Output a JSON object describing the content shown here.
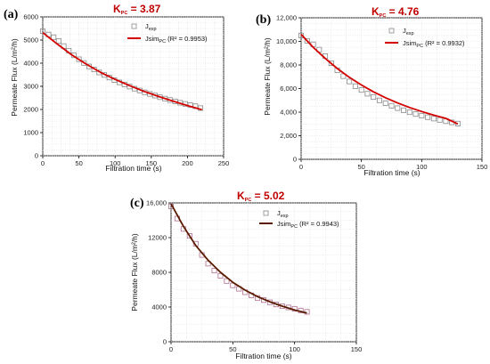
{
  "chart_data": [
    {
      "panel": "(a)",
      "title": "KPC = 3.87",
      "title_main": "K",
      "title_sub": "PC",
      "title_rest": " = 3.87",
      "type": "scatter",
      "xlabel": "Filtration time (s)",
      "ylabel": "Permeate Flux (L/m²/h)",
      "xlim": [
        0,
        250
      ],
      "ylim": [
        0,
        6000
      ],
      "xticks": [
        "0",
        "50",
        "100",
        "150",
        "200",
        "250"
      ],
      "yticks": [
        "0",
        "1000",
        "2000",
        "3000",
        "4000",
        "5000",
        "6000"
      ],
      "legend": {
        "exp": "J",
        "exp_sub": "exp",
        "sim": "Jsim",
        "sim_sub": "PC",
        "sim_rest": " (R² = 0.9953)"
      },
      "legend_position": "top-right",
      "line_color": "#d40000",
      "grid": true,
      "series": [
        {
          "name": "Jexp",
          "kind": "points",
          "x": [
            0,
            8,
            15,
            22,
            29,
            36,
            43,
            50,
            57,
            64,
            71,
            78,
            85,
            92,
            99,
            106,
            113,
            120,
            127,
            134,
            141,
            148,
            155,
            162,
            169,
            176,
            183,
            190,
            197,
            204,
            211,
            218
          ],
          "y": [
            5380,
            5240,
            5120,
            4960,
            4740,
            4540,
            4340,
            4170,
            4010,
            3860,
            3730,
            3600,
            3490,
            3380,
            3270,
            3170,
            3080,
            2990,
            2900,
            2820,
            2740,
            2670,
            2600,
            2530,
            2470,
            2410,
            2350,
            2290,
            2240,
            2190,
            2140,
            2060
          ]
        },
        {
          "name": "JsimPC (R² = 0.9953)",
          "kind": "line",
          "x": [
            0,
            20,
            40,
            60,
            80,
            100,
            120,
            140,
            160,
            180,
            200,
            220
          ],
          "y": [
            5320,
            4830,
            4360,
            3960,
            3600,
            3300,
            3030,
            2780,
            2560,
            2360,
            2170,
            1990
          ]
        }
      ]
    },
    {
      "panel": "(b)",
      "title": "KPC = 4.76",
      "title_main": "K",
      "title_sub": "PC",
      "title_rest": " = 4.76",
      "type": "scatter",
      "xlabel": "Filtration time (s)",
      "ylabel": "Permeate Flux (L/m²/h)",
      "xlim": [
        0,
        150
      ],
      "ylim": [
        0,
        12000
      ],
      "xticks": [
        "0",
        "50",
        "100",
        "150"
      ],
      "yticks": [
        "0",
        "2,000",
        "4,000",
        "6,000",
        "8,000",
        "10,000",
        "12,000"
      ],
      "legend": {
        "exp": "J",
        "exp_sub": "exp",
        "sim": "Jsim",
        "sim_sub": "PC",
        "sim_rest": " (R² = 0.9932)"
      },
      "legend_position": "top-right",
      "line_color": "#d40000",
      "grid": true,
      "series": [
        {
          "name": "Jexp",
          "kind": "points",
          "x": [
            0,
            5,
            10,
            15,
            20,
            25,
            30,
            35,
            40,
            45,
            50,
            55,
            60,
            65,
            70,
            75,
            80,
            85,
            90,
            95,
            100,
            105,
            110,
            115,
            120,
            125,
            130
          ],
          "y": [
            10500,
            10050,
            9750,
            9300,
            8750,
            8150,
            7550,
            7050,
            6600,
            6200,
            5880,
            5560,
            5280,
            5000,
            4760,
            4540,
            4340,
            4160,
            3990,
            3840,
            3700,
            3570,
            3450,
            3340,
            3230,
            3130,
            3030
          ]
        },
        {
          "name": "JsimPC (R² = 0.9932)",
          "kind": "line",
          "x": [
            0,
            10,
            20,
            30,
            40,
            50,
            60,
            70,
            80,
            90,
            100,
            110,
            120,
            130
          ],
          "y": [
            10600,
            9500,
            8550,
            7700,
            6950,
            6300,
            5720,
            5220,
            4780,
            4390,
            4050,
            3740,
            3470,
            3000
          ]
        }
      ]
    },
    {
      "panel": "(c)",
      "title": "KPC = 5.02",
      "title_main": "K",
      "title_sub": "PC",
      "title_rest": " = 5.02",
      "type": "scatter",
      "xlabel": "Filtration time (s)",
      "ylabel": "Permeate Flux (L/m²/h)",
      "xlim": [
        0,
        150
      ],
      "ylim": [
        0,
        16000
      ],
      "xticks": [
        "0",
        "50",
        "100",
        "150"
      ],
      "yticks": [
        "0",
        "4000",
        "8000",
        "12000",
        "16,000"
      ],
      "legend": {
        "exp": "J",
        "exp_sub": "exp",
        "sim": "Jsim",
        "sim_sub": "PC",
        "sim_rest": " (R² = 0.9943)"
      },
      "legend_position": "top-right",
      "line_color": "#5a1a00",
      "grid": true,
      "series": [
        {
          "name": "Jexp",
          "kind": "points",
          "x": [
            0,
            5,
            10,
            15,
            20,
            25,
            30,
            35,
            40,
            45,
            50,
            55,
            60,
            65,
            70,
            75,
            80,
            85,
            90,
            95,
            100,
            105,
            110
          ],
          "y": [
            15600,
            14200,
            13000,
            12200,
            11300,
            10000,
            9000,
            8200,
            7600,
            7000,
            6500,
            6100,
            5700,
            5350,
            5050,
            4800,
            4550,
            4300,
            4100,
            3950,
            3800,
            3600,
            3450
          ]
        },
        {
          "name": "JsimPC (R² = 0.9943)",
          "kind": "line",
          "x": [
            0,
            10,
            20,
            30,
            40,
            50,
            60,
            70,
            80,
            90,
            100,
            110
          ],
          "y": [
            15900,
            13300,
            11100,
            9400,
            8000,
            6850,
            5950,
            5200,
            4600,
            4100,
            3650,
            3300
          ]
        }
      ]
    }
  ]
}
